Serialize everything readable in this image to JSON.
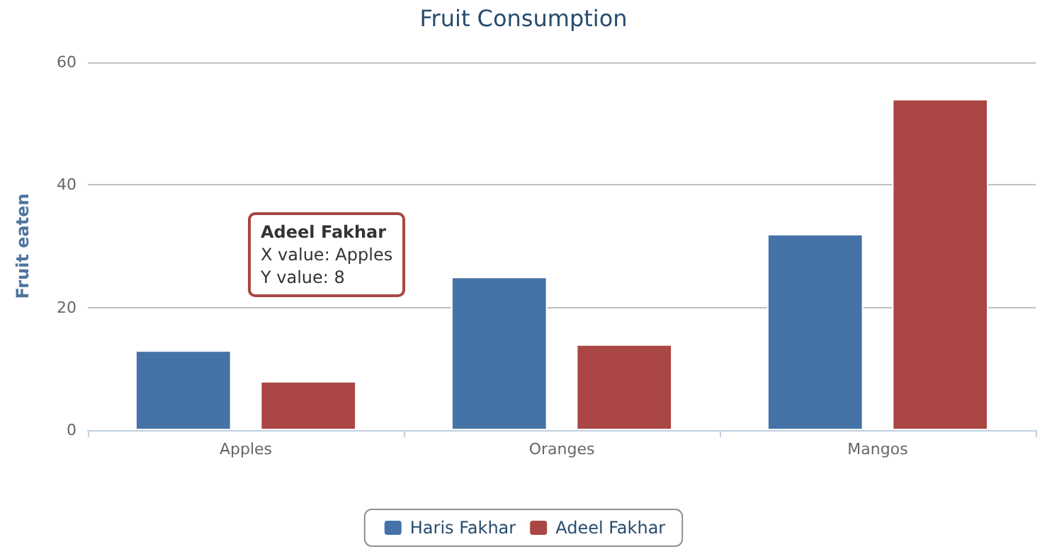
{
  "chart_data": {
    "type": "bar",
    "title": "Fruit Consumption",
    "ylabel": "Fruit eaten",
    "categories": [
      "Apples",
      "Oranges",
      "Mangos"
    ],
    "series": [
      {
        "name": "Haris Fakhar",
        "color": "#4572a7",
        "values": [
          13,
          25,
          32
        ]
      },
      {
        "name": "Adeel Fakhar",
        "color": "#aa4643",
        "values": [
          8,
          14,
          54
        ]
      }
    ],
    "ylim": [
      0,
      60
    ],
    "yticks": [
      0,
      20,
      40,
      60
    ],
    "grid": "y",
    "legend": "bottom",
    "annotations": [
      "Adeel Fakhar\nX value: Apples\nY value: 8"
    ]
  }
}
